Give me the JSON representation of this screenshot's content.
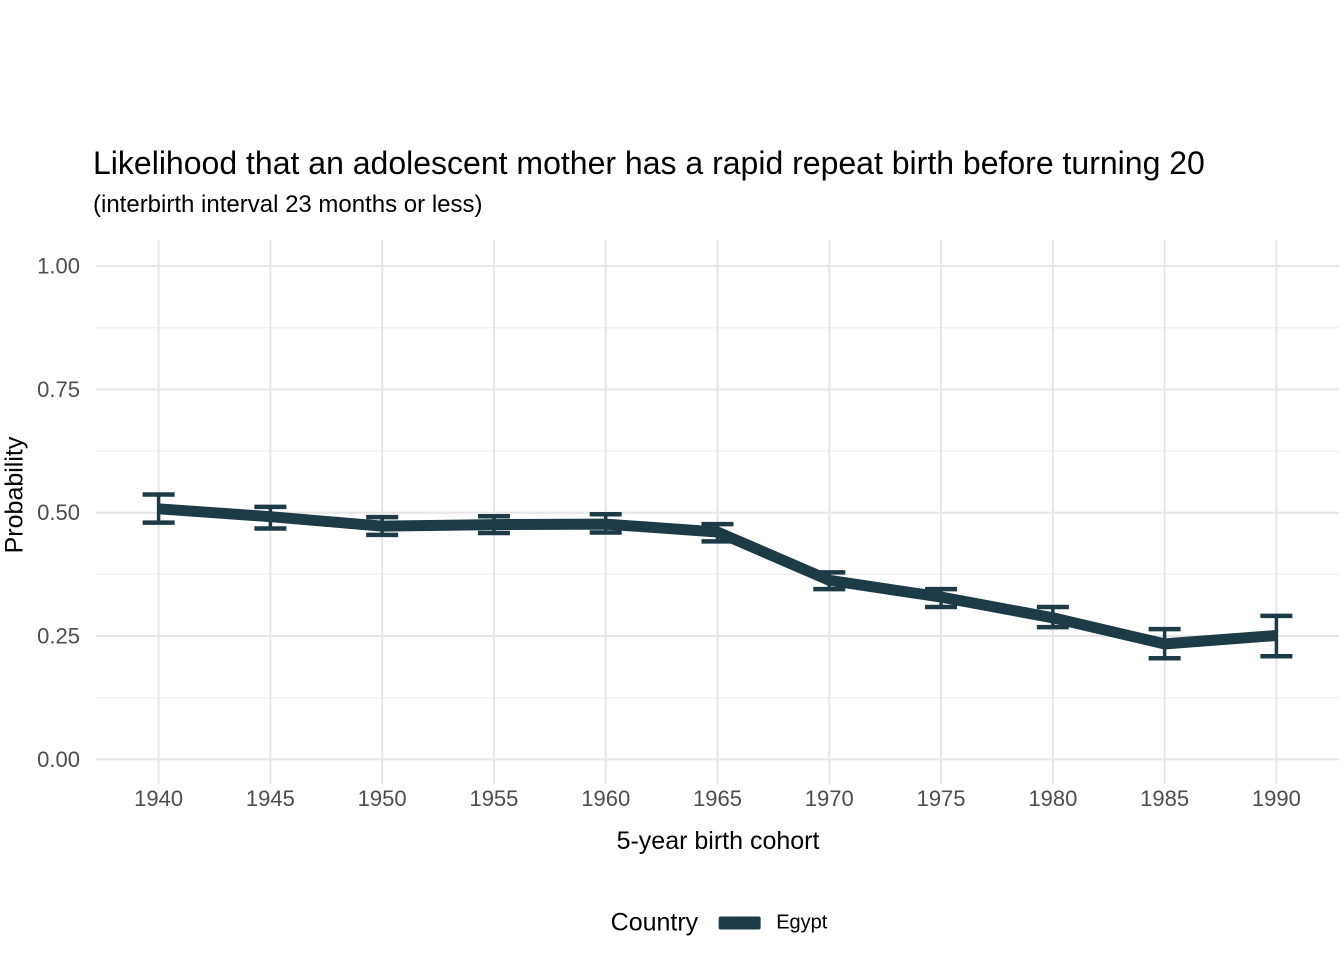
{
  "header": {
    "title": "Likelihood that an adolescent mother has a rapid repeat birth before turning 20",
    "subtitle": "(interbirth interval 23 months or less)"
  },
  "axes": {
    "x_title": "5-year birth cohort",
    "y_title": "Probability"
  },
  "legend": {
    "title": "Country",
    "entries": [
      {
        "label": "Egypt",
        "color": "#1c3b47"
      }
    ]
  },
  "colors": {
    "series": "#1c3b47",
    "grid_major": "#e6e6e6",
    "grid_minor": "#f1f1f1",
    "tick_text": "#4d4d4d",
    "title_text": "#000000"
  },
  "chart_data": {
    "type": "line",
    "title": "Likelihood that an adolescent mother has a rapid repeat birth before turning 20",
    "subtitle": "(interbirth interval 23 months or less)",
    "xlabel": "5-year birth cohort",
    "ylabel": "Probability",
    "legend_title": "Country",
    "legend_position": "bottom",
    "x_ticks": [
      1940,
      1945,
      1950,
      1955,
      1960,
      1965,
      1970,
      1975,
      1980,
      1985,
      1990
    ],
    "x_tick_labels": [
      "1940",
      "1945",
      "1950",
      "1955",
      "1960",
      "1965",
      "1970",
      "1975",
      "1980",
      "1985",
      "1990"
    ],
    "y_ticks": [
      0,
      0.25,
      0.5,
      0.75,
      1
    ],
    "y_tick_labels": [
      "0.00",
      "0.25",
      "0.50",
      "0.75",
      "1.00"
    ],
    "xlim": [
      1937.2,
      1992.8
    ],
    "ylim": [
      -0.05,
      1.053
    ],
    "grid": {
      "h_major": true,
      "h_minor": true,
      "v_major": true,
      "v_minor": false
    },
    "series": [
      {
        "name": "Egypt",
        "color": "#1c3b47",
        "x": [
          1940,
          1945,
          1950,
          1955,
          1960,
          1965,
          1970,
          1975,
          1980,
          1985,
          1990
        ],
        "y": [
          0.508,
          0.492,
          0.473,
          0.476,
          0.477,
          0.461,
          0.363,
          0.329,
          0.287,
          0.234,
          0.251
        ],
        "ci_low": [
          0.48,
          0.468,
          0.455,
          0.459,
          0.46,
          0.442,
          0.345,
          0.309,
          0.268,
          0.205,
          0.209
        ],
        "ci_high": [
          0.537,
          0.512,
          0.491,
          0.493,
          0.497,
          0.477,
          0.379,
          0.345,
          0.309,
          0.264,
          0.291
        ]
      }
    ]
  }
}
